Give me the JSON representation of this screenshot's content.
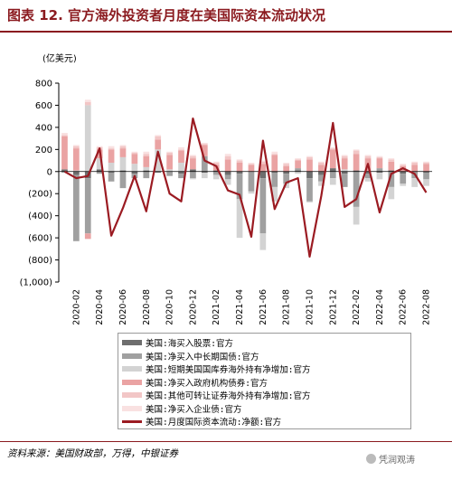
{
  "title": "图表 12. 官方海外投资者月度在美国际资本流动状况",
  "source": "资料来源：美国财政部，万得，中银证券",
  "watermark": "凭润观涛",
  "chart_data": {
    "type": "bar",
    "unit_label": "(亿美元)",
    "ylim": [
      -1000,
      800
    ],
    "yticks": [
      800,
      600,
      400,
      200,
      0,
      -200,
      -400,
      -600,
      -800,
      -1000
    ],
    "ytick_labels": [
      "800",
      "600",
      "400",
      "200",
      "0",
      "(200)",
      "(400)",
      "(600)",
      "(800)",
      "(1,000)"
    ],
    "x_tick_labels": [
      "2020-02",
      "2020-04",
      "2020-06",
      "2020-08",
      "2020-10",
      "2020-12",
      "2021-02",
      "2021-04",
      "2021-06",
      "2021-08",
      "2021-10",
      "2021-12",
      "2022-02",
      "2022-04",
      "2022-06",
      "2022-08"
    ],
    "months": [
      "2020-01",
      "2020-02",
      "2020-03",
      "2020-04",
      "2020-05",
      "2020-06",
      "2020-07",
      "2020-08",
      "2020-09",
      "2020-10",
      "2020-11",
      "2020-12",
      "2021-01",
      "2021-02",
      "2021-03",
      "2021-04",
      "2021-05",
      "2021-06",
      "2021-07",
      "2021-08",
      "2021-09",
      "2021-10",
      "2021-11",
      "2021-12",
      "2022-01",
      "2022-02",
      "2022-03",
      "2022-04",
      "2022-05",
      "2022-06",
      "2022-07",
      "2022-08"
    ],
    "series": [
      {
        "name": "美国:海买入股票:官方",
        "color": "#6e6e6e",
        "values": [
          20,
          -30,
          -60,
          20,
          -10,
          10,
          -20,
          10,
          -10,
          0,
          -20,
          20,
          -10,
          10,
          -30,
          -20,
          0,
          -60,
          -10,
          -20,
          10,
          -60,
          -30,
          30,
          -20,
          10,
          -20,
          -10,
          10,
          -20,
          0,
          -10
        ]
      },
      {
        "name": "美国:净买入中长期国债:官方",
        "color": "#a0a0a0",
        "values": [
          -10,
          -600,
          -500,
          -20,
          -80,
          -150,
          -40,
          -60,
          0,
          -40,
          -40,
          -60,
          140,
          -30,
          -40,
          -230,
          -180,
          -500,
          -130,
          -90,
          20,
          -210,
          -60,
          -60,
          -120,
          -320,
          -40,
          30,
          -140,
          -90,
          -60,
          -60
        ]
      },
      {
        "name": "美国:短期美国国库券海外持有净增加:官方",
        "color": "#d3d3d3",
        "values": [
          0,
          10,
          600,
          100,
          80,
          120,
          70,
          30,
          200,
          20,
          80,
          -10,
          -50,
          -40,
          -50,
          -350,
          -20,
          -150,
          -130,
          -40,
          -20,
          -10,
          -40,
          -60,
          20,
          -160,
          -30,
          -60,
          -110,
          -20,
          -80,
          -60
        ]
      },
      {
        "name": "美国:净买入政府机构债券:官方",
        "color": "#eaa3a3",
        "values": [
          300,
          200,
          -50,
          80,
          120,
          80,
          90,
          100,
          90,
          130,
          110,
          100,
          100,
          50,
          110,
          80,
          60,
          70,
          150,
          50,
          70,
          110,
          60,
          170,
          100,
          150,
          120,
          90,
          80,
          50,
          60,
          70
        ]
      },
      {
        "name": "美国:其他可转让证券海外持有净增加:官方",
        "color": "#f2c6c6",
        "values": [
          10,
          20,
          30,
          20,
          10,
          20,
          10,
          20,
          30,
          20,
          10,
          20,
          10,
          20,
          30,
          20,
          10,
          20,
          10,
          20,
          10,
          20,
          20,
          10,
          20,
          30,
          20,
          10,
          20,
          10,
          20,
          10
        ]
      },
      {
        "name": "美国:净买入企业债:官方",
        "color": "#f9e1e1",
        "values": [
          20,
          10,
          20,
          10,
          20,
          10,
          10,
          20,
          10,
          10,
          20,
          10,
          10,
          10,
          20,
          10,
          10,
          10,
          20,
          10,
          10,
          10,
          10,
          10,
          10,
          10,
          10,
          10,
          10,
          10,
          10,
          10
        ]
      },
      {
        "name": "美国:月度国际资本流动:净额:官方",
        "color": "#9b1b22",
        "type": "line",
        "values": [
          0,
          -60,
          -40,
          210,
          -580,
          -330,
          -40,
          -360,
          180,
          -200,
          -270,
          480,
          100,
          50,
          -170,
          -210,
          -590,
          280,
          -340,
          -100,
          -60,
          -770,
          -220,
          440,
          -320,
          -250,
          70,
          -370,
          -20,
          30,
          -20,
          -190
        ]
      }
    ]
  }
}
